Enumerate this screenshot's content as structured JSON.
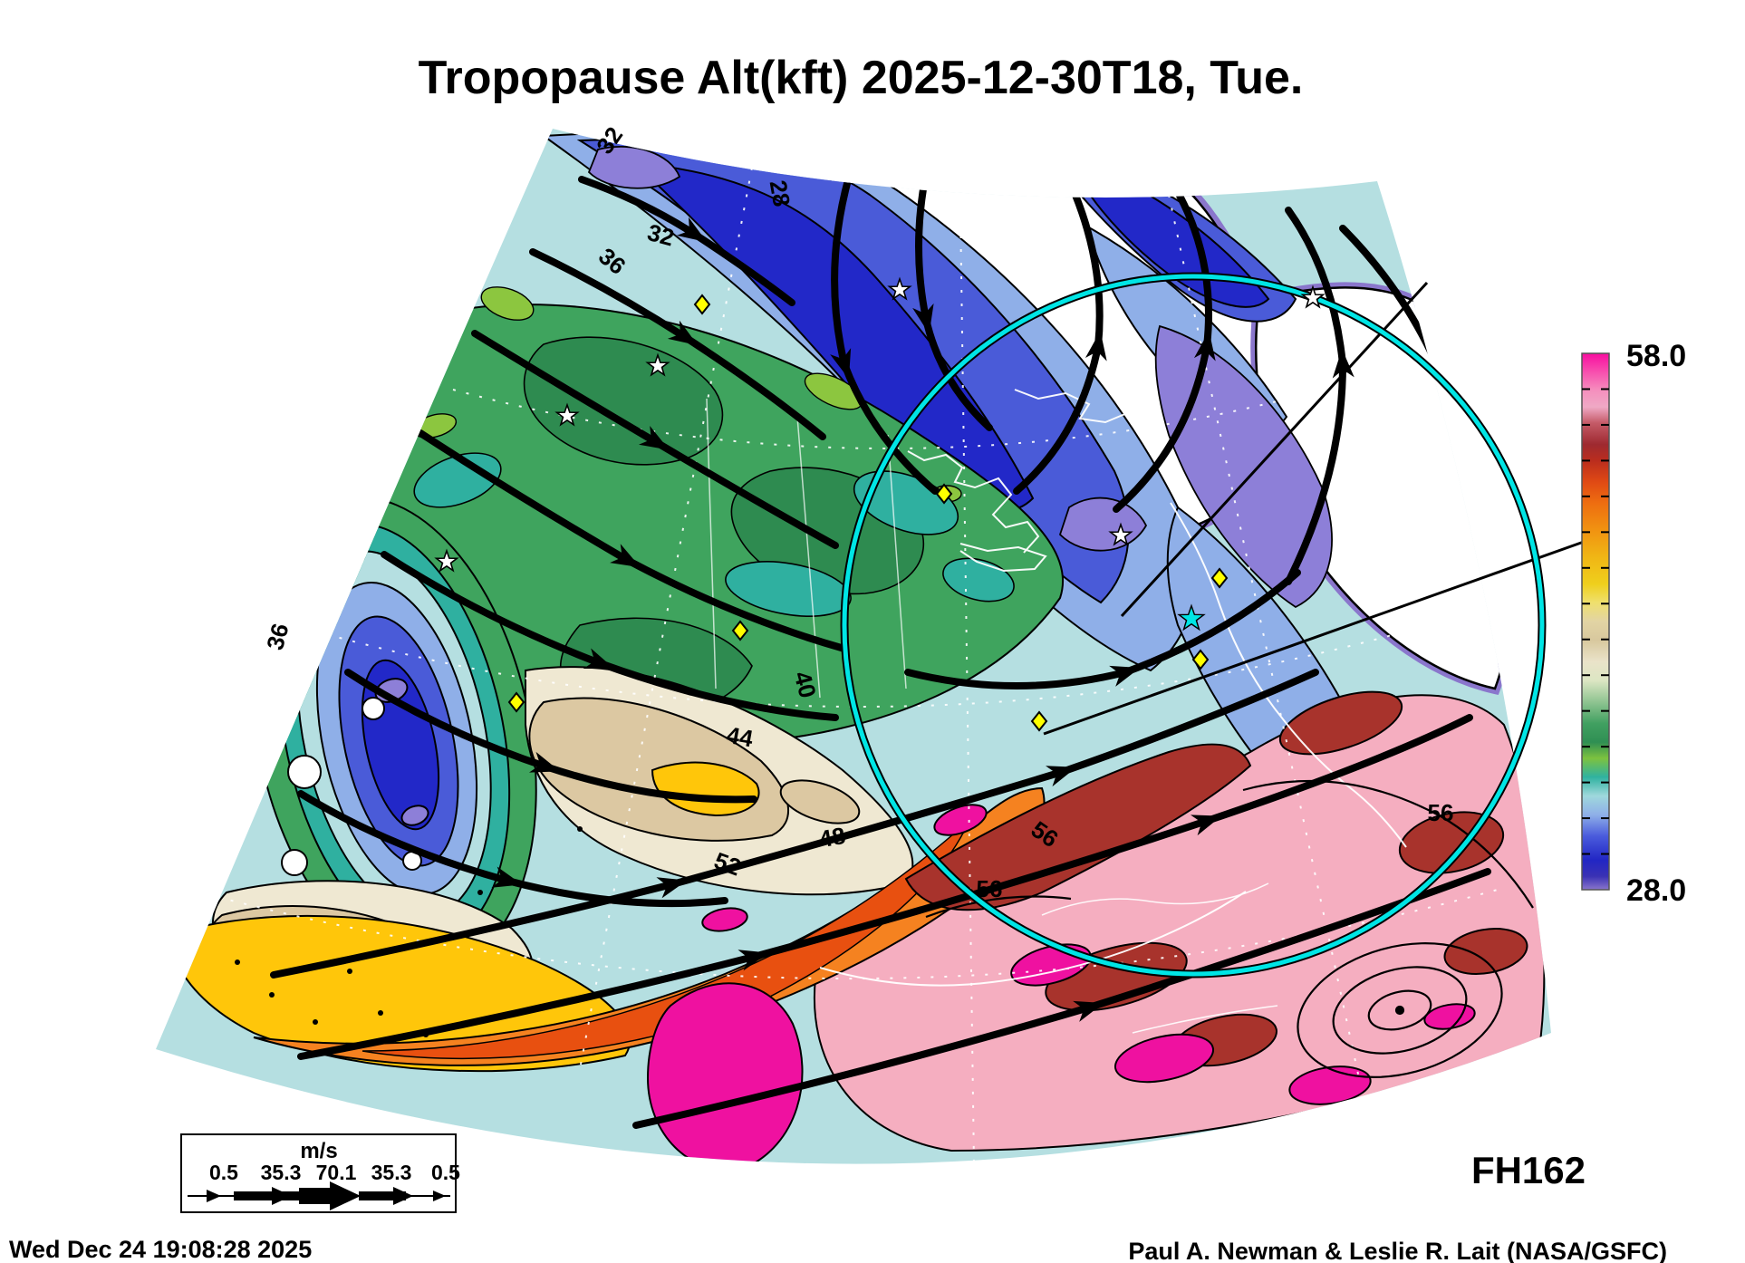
{
  "title": "Tropopause Alt(kft) 2025-12-30T18, Tue.",
  "colorbar": {
    "max_label": "58.0",
    "min_label": "28.0",
    "max_value": 58.0,
    "min_value": 28.0,
    "tick_step": 2.0,
    "units": "kft",
    "gradient": [
      {
        "p": 0.0,
        "c": "#F80DA0"
      },
      {
        "p": 0.03,
        "c": "#F846AC"
      },
      {
        "p": 0.07,
        "c": "#F590BE"
      },
      {
        "p": 0.1,
        "c": "#EFA9C5"
      },
      {
        "p": 0.13,
        "c": "#C45A67"
      },
      {
        "p": 0.17,
        "c": "#9E2A30"
      },
      {
        "p": 0.2,
        "c": "#BA2D1E"
      },
      {
        "p": 0.24,
        "c": "#E04A14"
      },
      {
        "p": 0.28,
        "c": "#EE6E10"
      },
      {
        "p": 0.33,
        "c": "#F19311"
      },
      {
        "p": 0.38,
        "c": "#F0B615"
      },
      {
        "p": 0.43,
        "c": "#EFCF1C"
      },
      {
        "p": 0.465,
        "c": "#EFE06E"
      },
      {
        "p": 0.5,
        "c": "#E2D4A4"
      },
      {
        "p": 0.535,
        "c": "#D8C89E"
      },
      {
        "p": 0.575,
        "c": "#EAE3C9"
      },
      {
        "p": 0.61,
        "c": "#DCE6C3"
      },
      {
        "p": 0.65,
        "c": "#8FC491"
      },
      {
        "p": 0.69,
        "c": "#41A061"
      },
      {
        "p": 0.725,
        "c": "#2F8F53"
      },
      {
        "p": 0.755,
        "c": "#7DC23F"
      },
      {
        "p": 0.79,
        "c": "#2FB2A0"
      },
      {
        "p": 0.825,
        "c": "#9FD8DC"
      },
      {
        "p": 0.86,
        "c": "#8FB0E8"
      },
      {
        "p": 0.9,
        "c": "#4A5BDC"
      },
      {
        "p": 0.945,
        "c": "#2226C4"
      },
      {
        "p": 0.975,
        "c": "#3A31B4"
      },
      {
        "p": 1.0,
        "c": "#8A76CC"
      }
    ]
  },
  "wind_legend": {
    "units": "m/s",
    "labels": [
      "0.5",
      "35.3",
      "70.1",
      "35.3",
      "0.5"
    ]
  },
  "footer": {
    "generated": "Wed Dec 24 19:08:28 2025",
    "forecast_hour": "FH162",
    "credit": "Paul A. Newman & Leslie R. Lait (NASA/GSFC)"
  },
  "map": {
    "contour_labels": [
      "28",
      "32",
      "32",
      "36",
      "36",
      "40",
      "44",
      "48",
      "52",
      "56",
      "56",
      "56"
    ],
    "palette": {
      "no_data": "#FFFFFF",
      "pale_cyan": "#B5DFE1",
      "teal": "#2FB0A0",
      "light_blue": "#8FAFE8",
      "medium_blue": "#4A5BD8",
      "dark_blue": "#2228C8",
      "purple": "#8D7FD8",
      "violet_fringe": "#8A76CC",
      "green": "#3FA45E",
      "dark_green": "#2E8B50",
      "lime": "#8CC63F",
      "cream": "#EFE8D2",
      "tan": "#DCC8A2",
      "yellow": "#FFC60A",
      "orange": "#F58220",
      "deep_orange": "#E85010",
      "dark_red": "#A8332C",
      "pink": "#F5AEC0",
      "magenta": "#EF11A0",
      "range_ring_cyan": "#00E5E5",
      "marker_yellow": "#FFFF00",
      "streamline_black": "#000000",
      "geo_line_white": "#FFFFFF"
    }
  }
}
